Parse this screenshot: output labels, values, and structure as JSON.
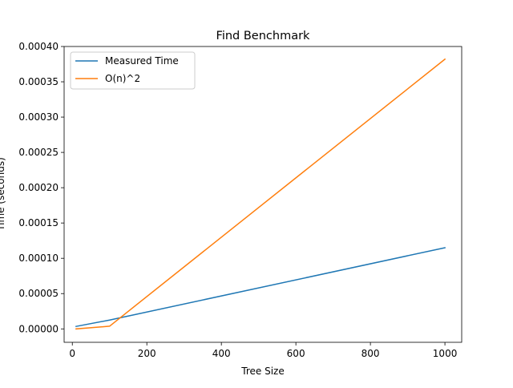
{
  "chart_data": {
    "type": "line",
    "title": "Find Benchmark",
    "xlabel": "Tree Size",
    "ylabel": "Time (seconds)",
    "xlim": [
      -22,
      1045
    ],
    "ylim": [
      -1.9e-05,
      0.0004
    ],
    "x_ticks": [
      0,
      200,
      400,
      600,
      800,
      1000
    ],
    "x_tick_labels": [
      "0",
      "200",
      "400",
      "600",
      "800",
      "1000"
    ],
    "y_ticks": [
      0,
      5e-05,
      0.0001,
      0.00015,
      0.0002,
      0.00025,
      0.0003,
      0.00035,
      0.0004
    ],
    "y_tick_labels": [
      "0.00000",
      "0.00005",
      "0.00010",
      "0.00015",
      "0.00020",
      "0.00025",
      "0.00030",
      "0.00035",
      "0.00040"
    ],
    "grid": false,
    "legend_position": "top-left",
    "series": [
      {
        "name": "Measured Time",
        "color": "#1f77b4",
        "x": [
          10,
          100,
          1000
        ],
        "y": [
          3.5e-06,
          1.25e-05,
          0.000115
        ]
      },
      {
        "name": "O(n)^2",
        "color": "#ff7f0e",
        "x": [
          10,
          100,
          1000
        ],
        "y": [
          0.0,
          3.8e-06,
          0.000382
        ]
      }
    ]
  }
}
